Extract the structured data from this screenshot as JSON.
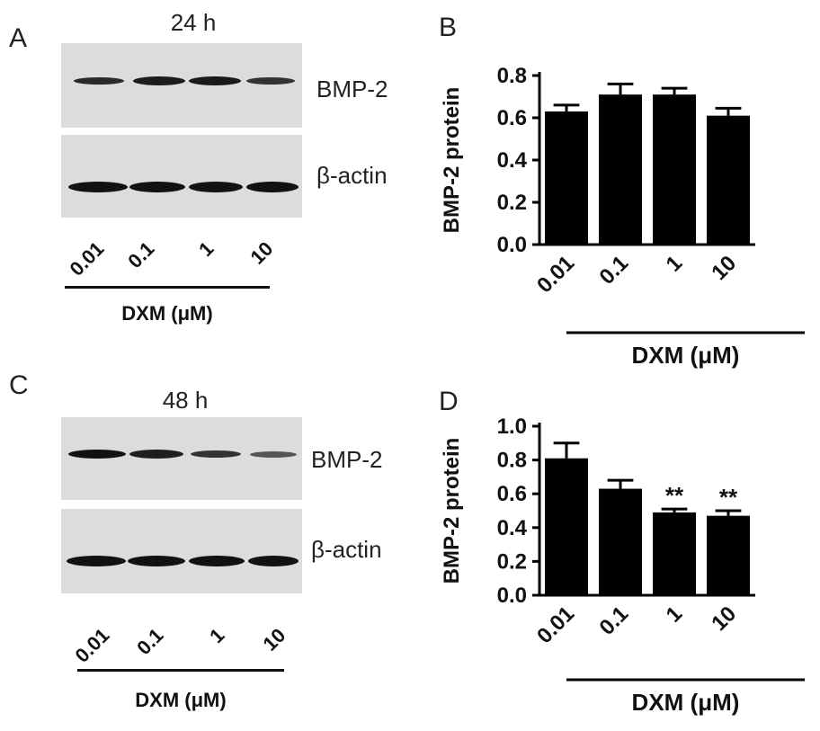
{
  "panels": {
    "A": {
      "letter": "A",
      "time": "24 h",
      "band_top": "BMP-2",
      "band_bottom": "β-actin",
      "lanes": [
        "0.01",
        "0.1",
        "1",
        "10"
      ],
      "xlabel": "DXM (μM)"
    },
    "B": {
      "letter": "B"
    },
    "C": {
      "letter": "C",
      "time": "48 h",
      "band_top": "BMP-2",
      "band_bottom": "β-actin",
      "lanes": [
        "0.01",
        "0.1",
        "1",
        "10"
      ],
      "xlabel": "DXM (μM)"
    },
    "D": {
      "letter": "D"
    }
  },
  "chart_data": [
    {
      "panel": "B",
      "type": "bar",
      "categories": [
        "0.01",
        "0.1",
        "1",
        "10"
      ],
      "values": [
        0.63,
        0.71,
        0.71,
        0.61
      ],
      "errors": [
        0.03,
        0.05,
        0.03,
        0.035
      ],
      "annotations": [
        "",
        "",
        "",
        ""
      ],
      "ylabel": "BMP-2 protein",
      "xlabel": "DXM (μM)",
      "ylim": [
        0,
        0.8
      ],
      "yticks": [
        "0.0",
        "0.2",
        "0.4",
        "0.6",
        "0.8"
      ],
      "bar_color": "#000000"
    },
    {
      "panel": "D",
      "type": "bar",
      "categories": [
        "0.01",
        "0.1",
        "1",
        "10"
      ],
      "values": [
        0.81,
        0.63,
        0.49,
        0.47
      ],
      "errors": [
        0.09,
        0.05,
        0.02,
        0.03
      ],
      "annotations": [
        "",
        "",
        "**",
        "**"
      ],
      "ylabel": "BMP-2 protein",
      "xlabel": "DXM (μM)",
      "ylim": [
        0,
        1.0
      ],
      "yticks": [
        "0.0",
        "0.2",
        "0.4",
        "0.6",
        "0.8",
        "1.0"
      ],
      "bar_color": "#000000"
    }
  ]
}
